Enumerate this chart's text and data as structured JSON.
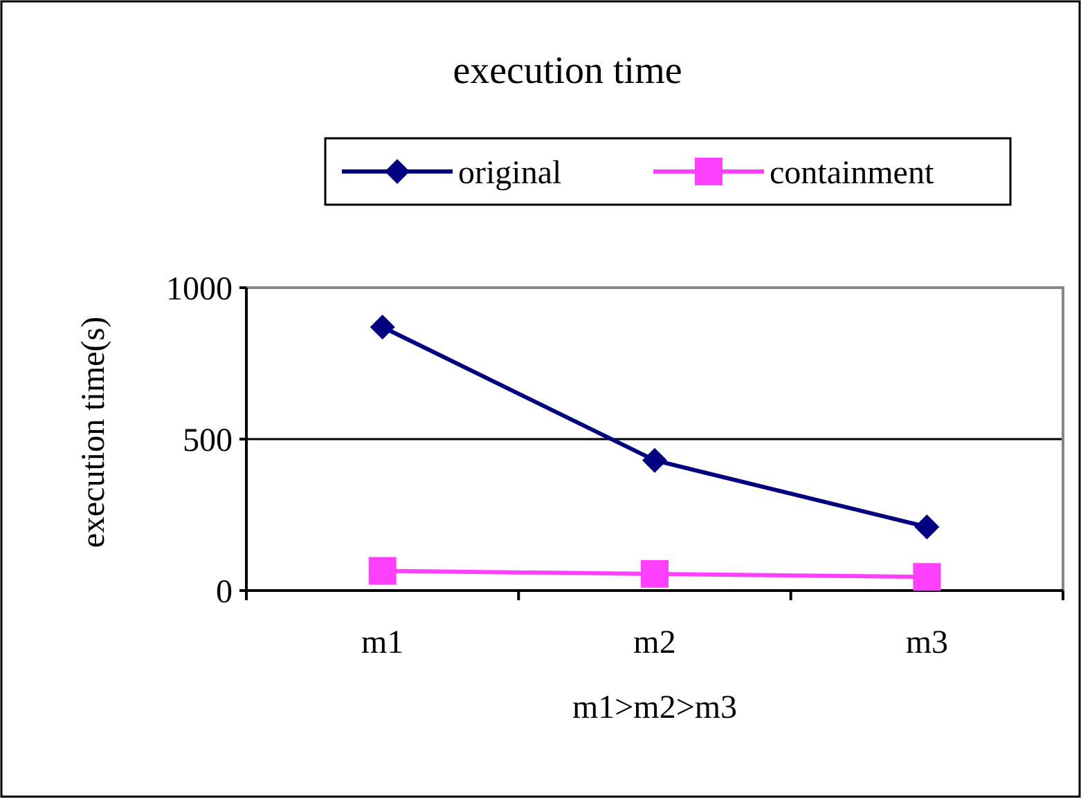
{
  "chart_data": {
    "type": "line",
    "title": "execution time",
    "xlabel": "m1>m2>m3",
    "ylabel": "execution time(s)",
    "categories": [
      "m1",
      "m2",
      "m3"
    ],
    "series": [
      {
        "name": "original",
        "color": "#000080",
        "values": [
          870,
          430,
          210
        ],
        "marker": "diamond"
      },
      {
        "name": "containment",
        "color": "#ff40ff",
        "values": [
          65,
          55,
          45
        ],
        "marker": "square"
      }
    ],
    "ylim": [
      0,
      1000
    ],
    "yticks": [
      0,
      500,
      1000
    ],
    "grid": "y",
    "legend": "top"
  }
}
